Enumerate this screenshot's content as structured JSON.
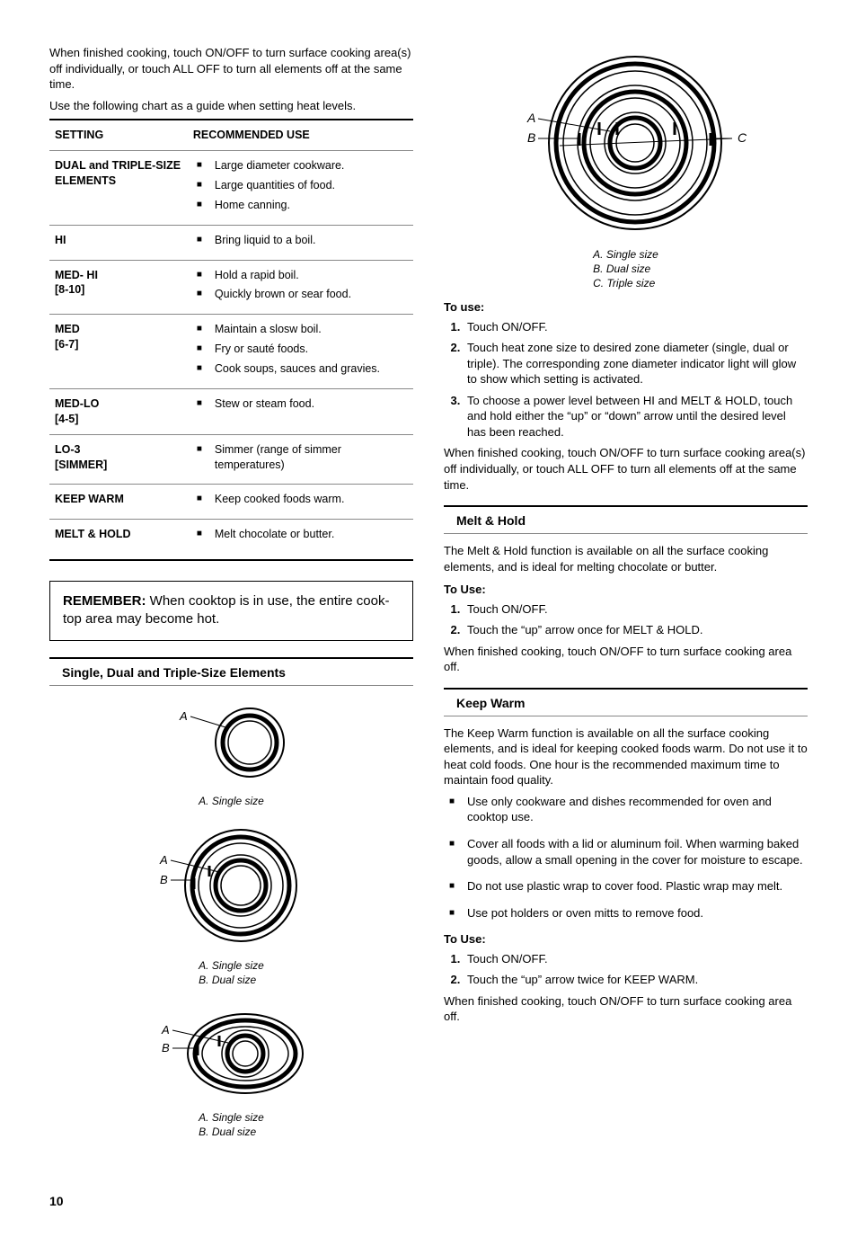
{
  "left": {
    "intro1": "When finished cooking, touch ON/OFF to turn surface cooking area(s) off individually, or touch ALL OFF to turn all elements off at the same time.",
    "intro2": "Use the following chart as a guide when setting heat levels.",
    "table": {
      "head1": "SETTING",
      "head2": "RECOMMENDED USE",
      "rows": [
        {
          "label": "DUAL and TRIPLE-SIZE ELEMENTS",
          "items": [
            "Large diameter cookware.",
            "Large quantities of food.",
            "Home canning."
          ]
        },
        {
          "label": "HI",
          "items": [
            "Bring liquid to a boil."
          ]
        },
        {
          "label": "MED- HI\n[8-10]",
          "items": [
            "Hold a rapid boil.",
            "Quickly brown or sear food."
          ]
        },
        {
          "label": "MED\n[6-7]",
          "items": [
            "Maintain a slosw boil.",
            "Fry or sauté foods.",
            "Cook soups, sauces and gravies."
          ]
        },
        {
          "label": "MED-LO\n[4-5]",
          "items": [
            "Stew or steam food."
          ]
        },
        {
          "label": "LO-3\n[SIMMER]",
          "items": [
            "Simmer (range of simmer temperatures)"
          ]
        },
        {
          "label": "KEEP WARM",
          "items": [
            "Keep cooked foods warm."
          ]
        },
        {
          "label": "MELT & HOLD",
          "items": [
            "Melt chocolate or butter."
          ]
        }
      ]
    },
    "remember_label": "REMEMBER:",
    "remember_text": " When cooktop is in use, the entire cook­top area may become hot.",
    "section_elements": "Single, Dual and Triple-Size Elements",
    "cap_single": "A. Single size",
    "cap_dual_a": "A. Single size",
    "cap_dual_b": "B. Dual size",
    "cap_dual2_a": "A. Single size",
    "cap_dual2_b": "B. Dual size"
  },
  "right": {
    "triple_cap_a": "A. Single size",
    "triple_cap_b": "B. Dual size",
    "triple_cap_c": "C. Triple size",
    "touse1_head": "To use:",
    "touse1_steps": [
      "Touch ON/OFF.",
      "Touch heat zone size to desired zone diameter (single, dual or triple). The corresponding zone diameter indicator light will glow to show which setting is activated.",
      "To choose a power level between HI and MELT & HOLD, touch and hold either the “up” or “down” arrow until the desired level has been reached."
    ],
    "touse1_after": "When finished cooking, touch ON/OFF to turn surface cooking area(s) off individually, or touch ALL OFF to turn all elements off at the same time.",
    "melt_head": "Melt & Hold",
    "melt_text": "The Melt & Hold function is available on all the surface cooking elements, and is ideal for melting chocolate or butter.",
    "melt_touse_head": "To Use:",
    "melt_steps": [
      "Touch ON/OFF.",
      "Touch the “up” arrow once for MELT & HOLD."
    ],
    "melt_after": "When finished cooking, touch ON/OFF to turn surface cooking area off.",
    "keep_head": "Keep Warm",
    "keep_text": "The Keep Warm function is available on all the surface cooking elements, and is ideal for keeping cooked foods warm. Do not use it to heat cold foods. One hour is the recommended maximum time to maintain food quality.",
    "keep_bullets": [
      "Use only cookware and dishes recommended for oven and cooktop use.",
      "Cover all foods with a lid or aluminum foil. When warming baked goods, allow a small opening in the cover for moisture to escape.",
      "Do not use plastic wrap to cover food. Plastic wrap may melt.",
      "Use pot holders or oven mitts to remove food."
    ],
    "keep_touse_head": "To Use:",
    "keep_steps": [
      "Touch ON/OFF.",
      "Touch the “up” arrow twice for KEEP WARM."
    ],
    "keep_after": "When finished cooking, touch ON/OFF to turn surface cooking area off."
  },
  "page_number": "10",
  "diagram_labels": {
    "A": "A",
    "B": "B",
    "C": "C"
  },
  "colors": {
    "text": "#000000",
    "rule_light": "#888888",
    "bg": "#ffffff"
  }
}
